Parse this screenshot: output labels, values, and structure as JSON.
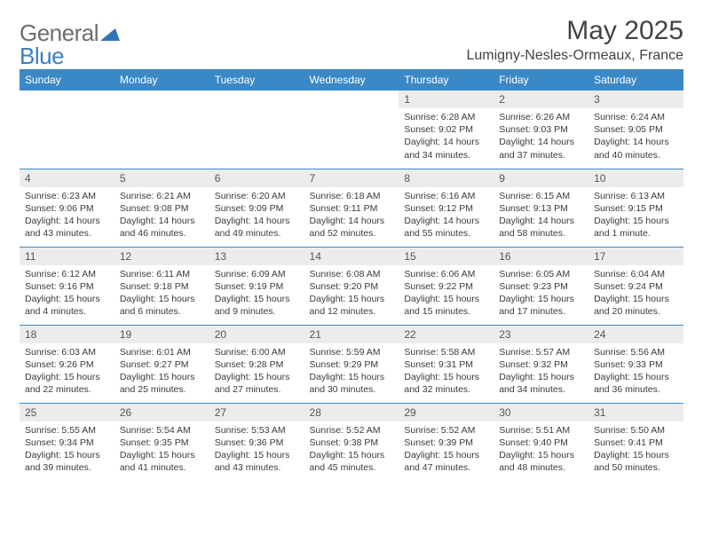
{
  "logo": {
    "text1": "General",
    "text2": "Blue",
    "color1": "#6d6d6d",
    "color2": "#3c7fc0",
    "shape_color": "#2f74b5"
  },
  "title": "May 2025",
  "location": "Lumigny-Nesles-Ormeaux, France",
  "header_bg": "#3b88c6",
  "daynum_bg": "#ececec",
  "rule_color": "#3b88c6",
  "weekdays": [
    "Sunday",
    "Monday",
    "Tuesday",
    "Wednesday",
    "Thursday",
    "Friday",
    "Saturday"
  ],
  "weeks": [
    [
      null,
      null,
      null,
      null,
      {
        "n": "1",
        "sr": "Sunrise: 6:28 AM",
        "ss": "Sunset: 9:02 PM",
        "dl": "Daylight: 14 hours and 34 minutes."
      },
      {
        "n": "2",
        "sr": "Sunrise: 6:26 AM",
        "ss": "Sunset: 9:03 PM",
        "dl": "Daylight: 14 hours and 37 minutes."
      },
      {
        "n": "3",
        "sr": "Sunrise: 6:24 AM",
        "ss": "Sunset: 9:05 PM",
        "dl": "Daylight: 14 hours and 40 minutes."
      }
    ],
    [
      {
        "n": "4",
        "sr": "Sunrise: 6:23 AM",
        "ss": "Sunset: 9:06 PM",
        "dl": "Daylight: 14 hours and 43 minutes."
      },
      {
        "n": "5",
        "sr": "Sunrise: 6:21 AM",
        "ss": "Sunset: 9:08 PM",
        "dl": "Daylight: 14 hours and 46 minutes."
      },
      {
        "n": "6",
        "sr": "Sunrise: 6:20 AM",
        "ss": "Sunset: 9:09 PM",
        "dl": "Daylight: 14 hours and 49 minutes."
      },
      {
        "n": "7",
        "sr": "Sunrise: 6:18 AM",
        "ss": "Sunset: 9:11 PM",
        "dl": "Daylight: 14 hours and 52 minutes."
      },
      {
        "n": "8",
        "sr": "Sunrise: 6:16 AM",
        "ss": "Sunset: 9:12 PM",
        "dl": "Daylight: 14 hours and 55 minutes."
      },
      {
        "n": "9",
        "sr": "Sunrise: 6:15 AM",
        "ss": "Sunset: 9:13 PM",
        "dl": "Daylight: 14 hours and 58 minutes."
      },
      {
        "n": "10",
        "sr": "Sunrise: 6:13 AM",
        "ss": "Sunset: 9:15 PM",
        "dl": "Daylight: 15 hours and 1 minute."
      }
    ],
    [
      {
        "n": "11",
        "sr": "Sunrise: 6:12 AM",
        "ss": "Sunset: 9:16 PM",
        "dl": "Daylight: 15 hours and 4 minutes."
      },
      {
        "n": "12",
        "sr": "Sunrise: 6:11 AM",
        "ss": "Sunset: 9:18 PM",
        "dl": "Daylight: 15 hours and 6 minutes."
      },
      {
        "n": "13",
        "sr": "Sunrise: 6:09 AM",
        "ss": "Sunset: 9:19 PM",
        "dl": "Daylight: 15 hours and 9 minutes."
      },
      {
        "n": "14",
        "sr": "Sunrise: 6:08 AM",
        "ss": "Sunset: 9:20 PM",
        "dl": "Daylight: 15 hours and 12 minutes."
      },
      {
        "n": "15",
        "sr": "Sunrise: 6:06 AM",
        "ss": "Sunset: 9:22 PM",
        "dl": "Daylight: 15 hours and 15 minutes."
      },
      {
        "n": "16",
        "sr": "Sunrise: 6:05 AM",
        "ss": "Sunset: 9:23 PM",
        "dl": "Daylight: 15 hours and 17 minutes."
      },
      {
        "n": "17",
        "sr": "Sunrise: 6:04 AM",
        "ss": "Sunset: 9:24 PM",
        "dl": "Daylight: 15 hours and 20 minutes."
      }
    ],
    [
      {
        "n": "18",
        "sr": "Sunrise: 6:03 AM",
        "ss": "Sunset: 9:26 PM",
        "dl": "Daylight: 15 hours and 22 minutes."
      },
      {
        "n": "19",
        "sr": "Sunrise: 6:01 AM",
        "ss": "Sunset: 9:27 PM",
        "dl": "Daylight: 15 hours and 25 minutes."
      },
      {
        "n": "20",
        "sr": "Sunrise: 6:00 AM",
        "ss": "Sunset: 9:28 PM",
        "dl": "Daylight: 15 hours and 27 minutes."
      },
      {
        "n": "21",
        "sr": "Sunrise: 5:59 AM",
        "ss": "Sunset: 9:29 PM",
        "dl": "Daylight: 15 hours and 30 minutes."
      },
      {
        "n": "22",
        "sr": "Sunrise: 5:58 AM",
        "ss": "Sunset: 9:31 PM",
        "dl": "Daylight: 15 hours and 32 minutes."
      },
      {
        "n": "23",
        "sr": "Sunrise: 5:57 AM",
        "ss": "Sunset: 9:32 PM",
        "dl": "Daylight: 15 hours and 34 minutes."
      },
      {
        "n": "24",
        "sr": "Sunrise: 5:56 AM",
        "ss": "Sunset: 9:33 PM",
        "dl": "Daylight: 15 hours and 36 minutes."
      }
    ],
    [
      {
        "n": "25",
        "sr": "Sunrise: 5:55 AM",
        "ss": "Sunset: 9:34 PM",
        "dl": "Daylight: 15 hours and 39 minutes."
      },
      {
        "n": "26",
        "sr": "Sunrise: 5:54 AM",
        "ss": "Sunset: 9:35 PM",
        "dl": "Daylight: 15 hours and 41 minutes."
      },
      {
        "n": "27",
        "sr": "Sunrise: 5:53 AM",
        "ss": "Sunset: 9:36 PM",
        "dl": "Daylight: 15 hours and 43 minutes."
      },
      {
        "n": "28",
        "sr": "Sunrise: 5:52 AM",
        "ss": "Sunset: 9:38 PM",
        "dl": "Daylight: 15 hours and 45 minutes."
      },
      {
        "n": "29",
        "sr": "Sunrise: 5:52 AM",
        "ss": "Sunset: 9:39 PM",
        "dl": "Daylight: 15 hours and 47 minutes."
      },
      {
        "n": "30",
        "sr": "Sunrise: 5:51 AM",
        "ss": "Sunset: 9:40 PM",
        "dl": "Daylight: 15 hours and 48 minutes."
      },
      {
        "n": "31",
        "sr": "Sunrise: 5:50 AM",
        "ss": "Sunset: 9:41 PM",
        "dl": "Daylight: 15 hours and 50 minutes."
      }
    ]
  ]
}
